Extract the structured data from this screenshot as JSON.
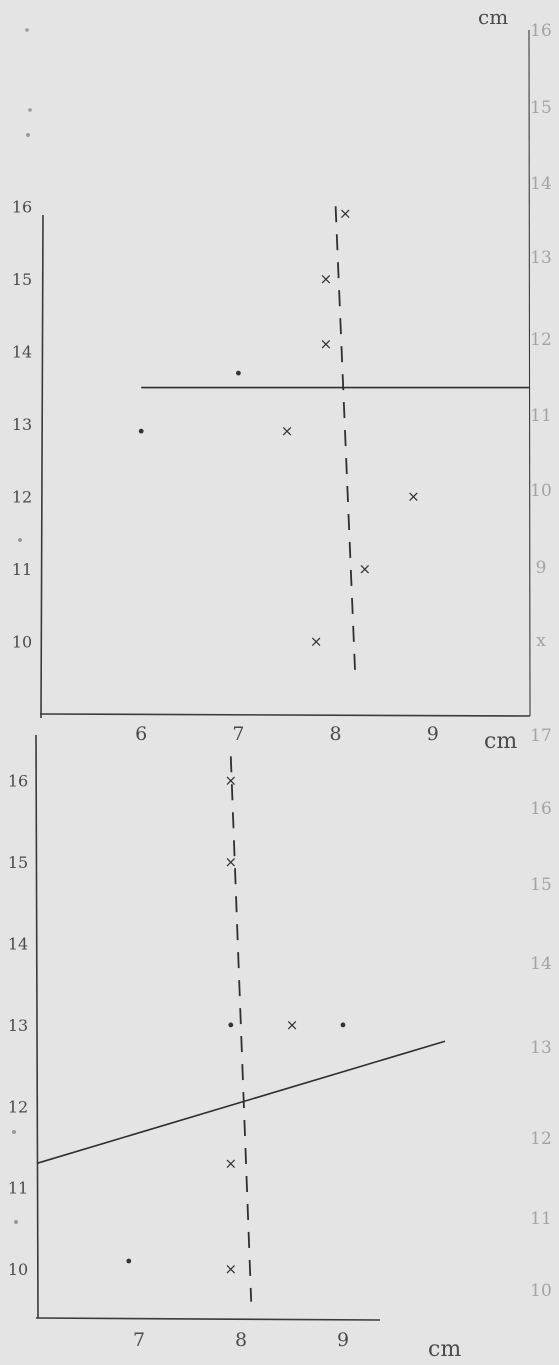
{
  "chart_data": [
    {
      "type": "scatter",
      "unit_label_right": "cm",
      "unit_label_bottom": "cm",
      "x_ticks": [
        "6",
        "7",
        "8",
        "9"
      ],
      "y_ticks_left": [
        "10",
        "11",
        "12",
        "13",
        "14",
        "15",
        "16"
      ],
      "y_ticks_right": [
        "16",
        "15",
        "14",
        "13",
        "12",
        "11",
        "10",
        "9",
        "x"
      ],
      "points": [
        {
          "x": 8.1,
          "y": 15.9,
          "marker": "x"
        },
        {
          "x": 7.9,
          "y": 15.0,
          "marker": "x"
        },
        {
          "x": 7.9,
          "y": 14.1,
          "marker": "x"
        },
        {
          "x": 7.0,
          "y": 13.7,
          "marker": "."
        },
        {
          "x": 6.0,
          "y": 12.9,
          "marker": "."
        },
        {
          "x": 7.5,
          "y": 12.9,
          "marker": "x"
        },
        {
          "x": 8.8,
          "y": 12.0,
          "marker": "x"
        },
        {
          "x": 8.3,
          "y": 11.0,
          "marker": "x"
        },
        {
          "x": 7.8,
          "y": 10.0,
          "marker": "x"
        }
      ],
      "lines": [
        {
          "style": "solid",
          "x": [
            6.0,
            10.0
          ],
          "y": [
            13.5,
            13.5
          ]
        },
        {
          "style": "dashed",
          "x": [
            8.0,
            8.2
          ],
          "y": [
            16.0,
            9.6
          ]
        }
      ],
      "xlim": [
        5.0,
        10.0
      ],
      "ylim": [
        9.0,
        16.5
      ]
    },
    {
      "type": "scatter",
      "unit_label_right": "cm",
      "x_ticks": [
        "7",
        "8",
        "9"
      ],
      "y_ticks_left": [
        "10",
        "11",
        "12",
        "13",
        "14",
        "15",
        "16"
      ],
      "y_ticks_right": [
        "17",
        "16",
        "15",
        "14",
        "13",
        "12",
        "11",
        "10"
      ],
      "points": [
        {
          "x": 7.9,
          "y": 16.0,
          "marker": "x"
        },
        {
          "x": 7.9,
          "y": 15.0,
          "marker": "x"
        },
        {
          "x": 7.9,
          "y": 13.0,
          "marker": "."
        },
        {
          "x": 8.5,
          "y": 13.0,
          "marker": "x"
        },
        {
          "x": 9.0,
          "y": 13.0,
          "marker": "."
        },
        {
          "x": 7.9,
          "y": 11.3,
          "marker": "x"
        },
        {
          "x": 6.9,
          "y": 10.1,
          "marker": "."
        },
        {
          "x": 7.9,
          "y": 10.0,
          "marker": "x"
        }
      ],
      "lines": [
        {
          "style": "solid",
          "x": [
            6.0,
            10.0
          ],
          "y": [
            11.3,
            12.8
          ]
        },
        {
          "style": "dashed",
          "x": [
            7.9,
            8.1
          ],
          "y": [
            16.3,
            9.6
          ]
        }
      ],
      "xlim": [
        6.0,
        10.0
      ],
      "ylim": [
        9.4,
        16.5
      ]
    }
  ]
}
